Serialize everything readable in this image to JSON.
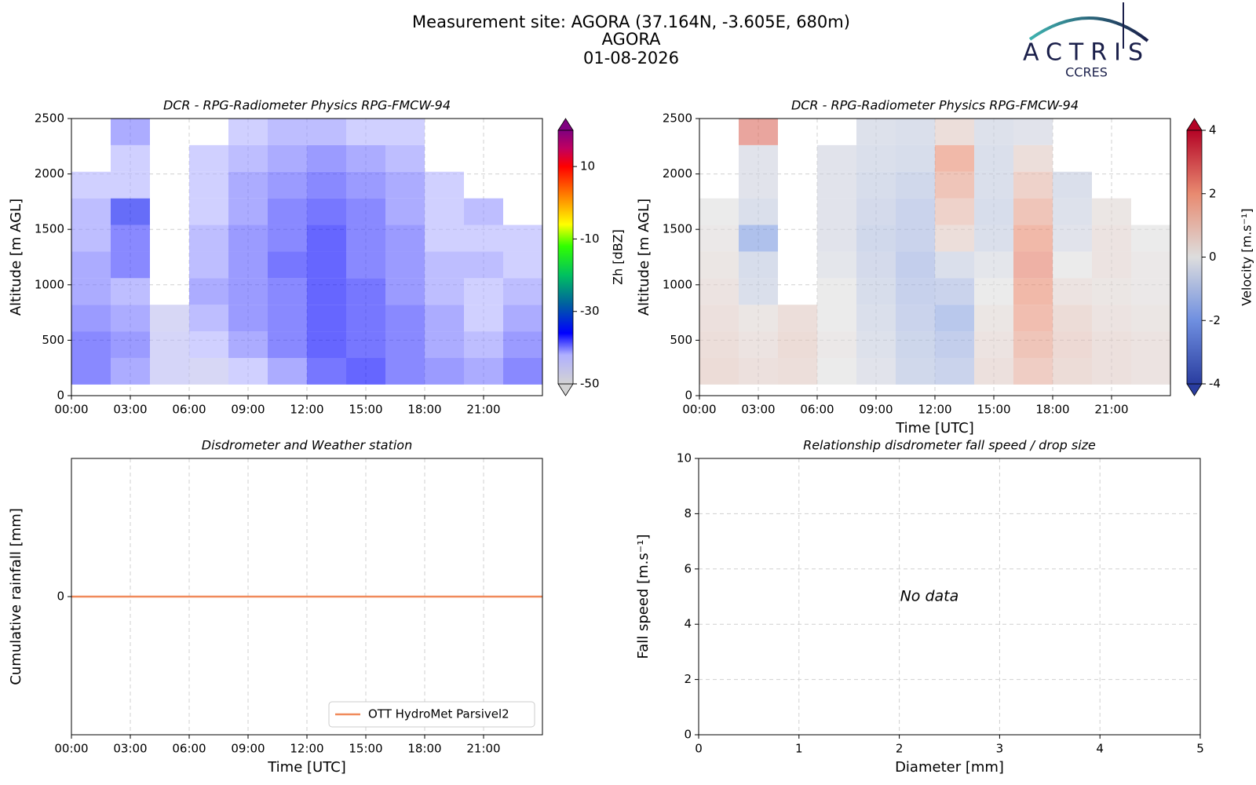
{
  "header": {
    "lines": [
      "Measurement site: AGORA (37.164N, -3.605E, 680m)",
      "AGORA",
      "01-08-2026"
    ],
    "logo_text": "ACTRIS",
    "logo_subtext": "CCRES"
  },
  "chart_data": [
    {
      "type": "heatmap",
      "title": "DCR - RPG-Radiometer Physics RPG-FMCW-94",
      "y_label": "Altitude [m AGL]",
      "xlim": [
        0,
        24
      ],
      "xticks": [
        {
          "value": 0,
          "label": "00:00"
        },
        {
          "value": 3,
          "label": "03:00"
        },
        {
          "value": 6,
          "label": "06:00"
        },
        {
          "value": 9,
          "label": "09:00"
        },
        {
          "value": 12,
          "label": "12:00"
        },
        {
          "value": 15,
          "label": "15:00"
        },
        {
          "value": 18,
          "label": "18:00"
        },
        {
          "value": 21,
          "label": "21:00"
        }
      ],
      "ylim": [
        0,
        2500
      ],
      "yticks": [
        0,
        500,
        1000,
        1500,
        2000,
        2500
      ],
      "grid": true,
      "x_bins": [
        0,
        2,
        4,
        6,
        8,
        10,
        12,
        14,
        16,
        18,
        20,
        22,
        24
      ],
      "y_bins": [
        100,
        340,
        580,
        820,
        1060,
        1300,
        1540,
        1780,
        2020,
        2260,
        2500
      ],
      "z": [
        [
          -38,
          -40,
          -44,
          -45,
          -42,
          -40,
          -37,
          -36,
          -38,
          -39,
          -40,
          -38
        ],
        [
          -38,
          -39,
          -44,
          -42,
          -40,
          -38,
          -36,
          -37,
          -38,
          -40,
          -41,
          -39
        ],
        [
          -39,
          -40,
          -45,
          -41,
          -39,
          -38,
          -36,
          -37,
          -38,
          -40,
          -42,
          -40
        ],
        [
          -40,
          -41,
          null,
          -40,
          -39,
          -38,
          -36,
          -37,
          -39,
          -41,
          -42,
          -41
        ],
        [
          -40,
          -38,
          null,
          -41,
          -39,
          -37,
          -36,
          -38,
          -39,
          -41,
          -41,
          -42
        ],
        [
          -41,
          -38,
          null,
          -41,
          -39,
          -38,
          -36,
          -38,
          -39,
          -42,
          -42,
          -42
        ],
        [
          -41,
          -35,
          null,
          -42,
          -40,
          -38,
          -37,
          -38,
          -40,
          -42,
          -41,
          null
        ],
        [
          -42,
          -42,
          null,
          -42,
          -40,
          -39,
          -38,
          -39,
          -40,
          -42,
          null,
          null
        ],
        [
          null,
          -42,
          null,
          -42,
          -41,
          -40,
          -39,
          -40,
          -41,
          null,
          null,
          null
        ],
        [
          null,
          -40,
          null,
          null,
          -42,
          -41,
          -41,
          -42,
          -42,
          null,
          null,
          null
        ]
      ],
      "colorbar": {
        "label": "Zh [dBZ]",
        "clim": [
          -50,
          20
        ],
        "ticks": [
          -50,
          -30,
          -10,
          10
        ],
        "extend": "both",
        "colormap": [
          [
            -50,
            "#d3d3d3"
          ],
          [
            -42,
            "#b0b0ff"
          ],
          [
            -36,
            "#0000ff"
          ],
          [
            -28,
            "#0060a0"
          ],
          [
            -20,
            "#00c060"
          ],
          [
            -12,
            "#30ff00"
          ],
          [
            -6,
            "#ffff00"
          ],
          [
            2,
            "#ff8000"
          ],
          [
            10,
            "#ff0000"
          ],
          [
            15,
            "#c00060"
          ],
          [
            20,
            "#800080"
          ]
        ]
      }
    },
    {
      "type": "heatmap",
      "title": "DCR - RPG-Radiometer Physics RPG-FMCW-94",
      "y_label": "Altitude [m AGL]",
      "x_label": "Time [UTC]",
      "xlim": [
        0,
        24
      ],
      "xticks": [
        {
          "value": 0,
          "label": "00:00"
        },
        {
          "value": 3,
          "label": "03:00"
        },
        {
          "value": 6,
          "label": "06:00"
        },
        {
          "value": 9,
          "label": "09:00"
        },
        {
          "value": 12,
          "label": "12:00"
        },
        {
          "value": 15,
          "label": "15:00"
        },
        {
          "value": 18,
          "label": "18:00"
        },
        {
          "value": 21,
          "label": "21:00"
        }
      ],
      "ylim": [
        0,
        2500
      ],
      "yticks": [
        0,
        500,
        1000,
        1500,
        2000,
        2500
      ],
      "grid": true,
      "x_bins": [
        0,
        2,
        4,
        6,
        8,
        10,
        12,
        14,
        16,
        18,
        20,
        22,
        24
      ],
      "y_bins": [
        100,
        340,
        580,
        820,
        1060,
        1300,
        1540,
        1780,
        2020,
        2260,
        2500
      ],
      "z": [
        [
          0.6,
          0.4,
          0.5,
          0.0,
          -0.3,
          -0.8,
          -1.0,
          0.4,
          1.2,
          0.6,
          0.4,
          0.3
        ],
        [
          0.5,
          0.3,
          0.6,
          0.1,
          -0.4,
          -0.9,
          -1.2,
          0.3,
          1.5,
          0.7,
          0.4,
          0.3
        ],
        [
          0.4,
          0.2,
          0.5,
          0.0,
          -0.5,
          -1.0,
          -1.5,
          0.2,
          1.8,
          0.6,
          0.3,
          0.2
        ],
        [
          0.3,
          -0.5,
          null,
          0.0,
          -0.6,
          -1.1,
          -1.0,
          0.0,
          2.0,
          0.3,
          0.2,
          0.1
        ],
        [
          0.2,
          -0.6,
          null,
          -0.2,
          -0.7,
          -1.2,
          -0.5,
          -0.2,
          2.2,
          0.0,
          0.3,
          0.1
        ],
        [
          0.1,
          -1.8,
          null,
          -0.3,
          -0.8,
          -1.0,
          0.5,
          -0.5,
          2.0,
          -0.3,
          0.3,
          0.0
        ],
        [
          0.0,
          -0.5,
          null,
          -0.3,
          -0.7,
          -1.0,
          1.0,
          -0.6,
          1.5,
          -0.4,
          0.2,
          null
        ],
        [
          null,
          -0.3,
          null,
          -0.3,
          -0.6,
          -0.8,
          1.5,
          -0.5,
          1.0,
          -0.5,
          null,
          null
        ],
        [
          null,
          -0.3,
          null,
          -0.3,
          -0.5,
          -0.6,
          2.0,
          -0.5,
          0.5,
          null,
          null,
          null
        ],
        [
          null,
          2.5,
          null,
          null,
          -0.4,
          -0.5,
          0.5,
          -0.4,
          -0.3,
          null,
          null,
          null
        ]
      ],
      "colorbar": {
        "label": "Velocity [m.s⁻¹]",
        "clim": [
          -4,
          4
        ],
        "ticks": [
          -4,
          -2,
          0,
          2,
          4
        ],
        "extend": "both",
        "colormap": [
          [
            -4,
            "#2a3da0"
          ],
          [
            -2,
            "#6f8fe0"
          ],
          [
            0,
            "#dddddd"
          ],
          [
            2,
            "#e88a70"
          ],
          [
            4,
            "#b40426"
          ]
        ]
      }
    },
    {
      "type": "line",
      "title": "Disdrometer and Weather station",
      "y_label": "Cumulative rainfall [mm]",
      "x_label": "Time [UTC]",
      "xlim": [
        0,
        24
      ],
      "xticks": [
        {
          "value": 0,
          "label": "00:00"
        },
        {
          "value": 3,
          "label": "03:00"
        },
        {
          "value": 6,
          "label": "06:00"
        },
        {
          "value": 9,
          "label": "09:00"
        },
        {
          "value": 12,
          "label": "12:00"
        },
        {
          "value": 15,
          "label": "15:00"
        },
        {
          "value": 18,
          "label": "18:00"
        },
        {
          "value": 21,
          "label": "21:00"
        }
      ],
      "ylim": [
        -0.055,
        0.055
      ],
      "yticks": [
        0
      ],
      "grid": true,
      "legend": "lower right",
      "x": [
        0,
        24
      ],
      "series": [
        {
          "name": "OTT HydroMet Parsivel2",
          "color": "#f08a5b",
          "values": [
            0,
            0
          ]
        }
      ]
    },
    {
      "type": "scatter",
      "title": "Relationship disdrometer fall speed / drop size",
      "y_label": "Fall speed [m.s⁻¹]",
      "x_label": "Diameter [mm]",
      "xlim": [
        0,
        5
      ],
      "xticks": [
        0,
        1,
        2,
        3,
        4,
        5
      ],
      "ylim": [
        0,
        10
      ],
      "yticks": [
        0,
        2,
        4,
        6,
        8,
        10
      ],
      "grid": true,
      "annotation": "No data"
    }
  ]
}
